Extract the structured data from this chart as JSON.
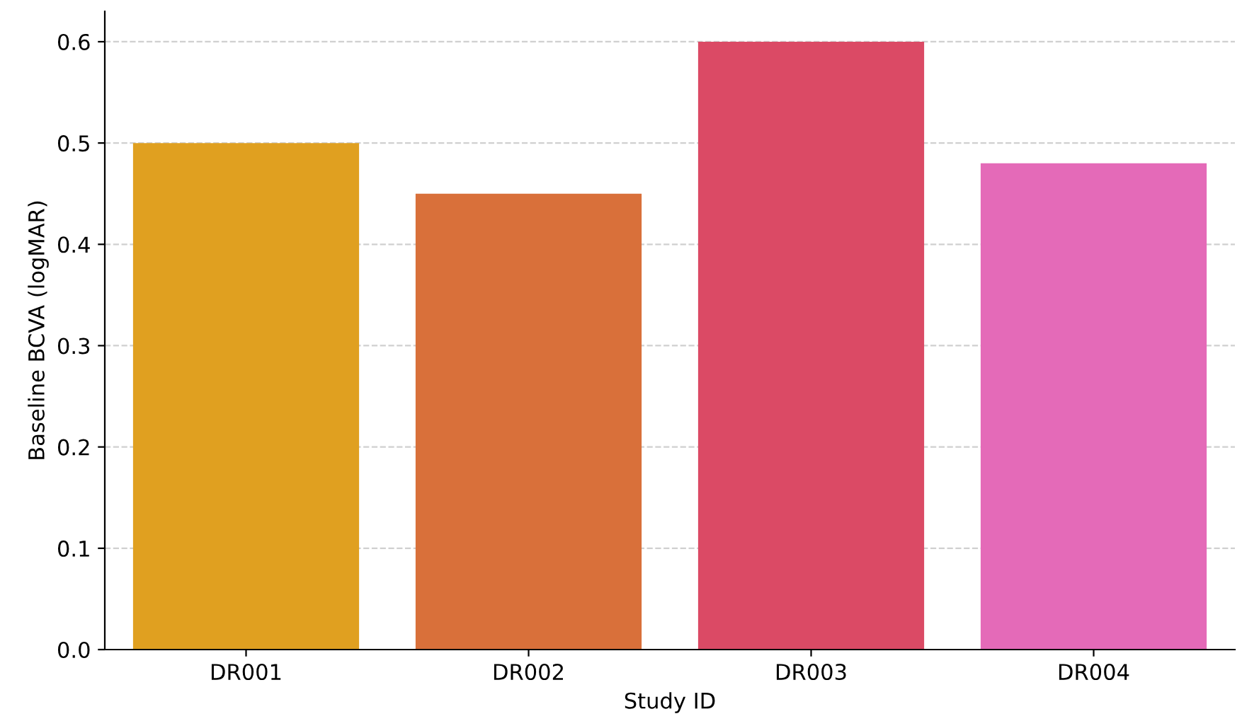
{
  "chart_data": {
    "type": "bar",
    "xlabel": "Study ID",
    "ylabel": "Baseline BCVA (logMAR)",
    "categories": [
      "DR001",
      "DR002",
      "DR003",
      "DR004"
    ],
    "values": [
      0.5,
      0.45,
      0.6,
      0.48
    ],
    "colors": [
      "#e0a020",
      "#d9703a",
      "#db4a65",
      "#e46ab8"
    ],
    "ylim": [
      0,
      0.63
    ],
    "yticks": [
      {
        "value": 0,
        "label": "0.0"
      },
      0.1,
      0.2,
      0.3,
      0.4,
      0.5,
      0.6
    ],
    "grid": "y"
  }
}
